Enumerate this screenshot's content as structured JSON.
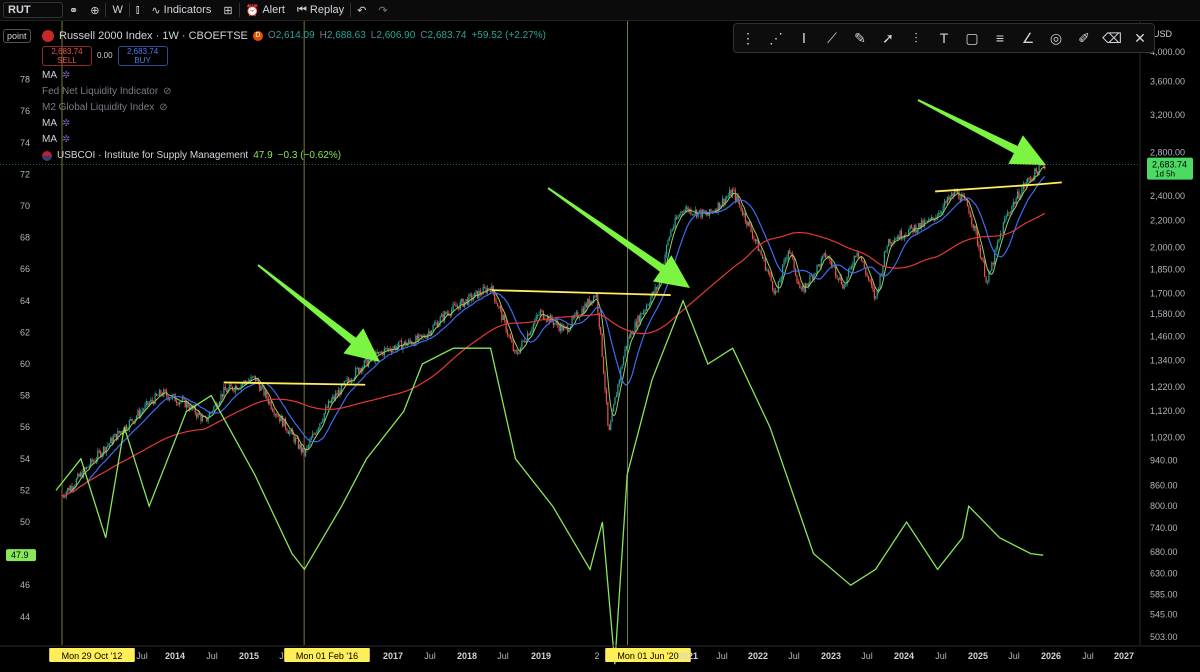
{
  "toolbar": {
    "symbol": "RUT",
    "interval": "W",
    "indicators_label": "Indicators",
    "alert_label": "Alert",
    "replay_label": "Replay"
  },
  "legend": {
    "title": "Russell 2000 Index · 1W · CBOEFTSE",
    "ohlc_o": "O",
    "ohlc_o_val": "2,614.09",
    "ohlc_h": "H",
    "ohlc_h_val": "2,688.63",
    "ohlc_l": "L",
    "ohlc_l_val": "2,606.90",
    "ohlc_c": "C",
    "ohlc_c_val": "2,683.74",
    "change": "+59.52 (+2.27%)",
    "sell_price": "2,683.74",
    "sell_label": "SELL",
    "spread": "0.00",
    "buy_price": "2,683.74",
    "buy_label": "BUY",
    "ma1": "MA",
    "fed_net": "Fed Net Liquidity Indicator",
    "m2": "M2 Global Liquidity Index",
    "ma2": "MA",
    "ma3": "MA",
    "usbcoi": "USBCOI · Institute for Supply Management",
    "usbcoi_val": "47.9",
    "usbcoi_chg": "−0.3 (−0.62%)"
  },
  "left_scale_label": "point",
  "right_scale_label": "USD",
  "colors": {
    "up": "#26a69a",
    "down": "#ef5350",
    "ism": "#88e65a",
    "ma_blue": "#3d6cf0",
    "ma_red": "#e53935",
    "ma_green": "#9ccc65",
    "resistance": "#ffee58",
    "arrow": "#7cf542",
    "price_tag": "#4cd964"
  },
  "chart_data": {
    "type": "line",
    "title": "Russell 2000 Index · 1W · CBOEFTSE",
    "x_labels": [
      "Mon 29 Oct '12",
      "Jul",
      "2014",
      "Jul",
      "2015",
      "Jul",
      "Mon 01 Feb '16",
      "2017",
      "Jul",
      "2018",
      "Jul",
      "2019",
      "2",
      "Mon 01 Jun '20",
      "2021",
      "Jul",
      "2022",
      "Jul",
      "2023",
      "Jul",
      "2024",
      "Jul",
      "2025",
      "Jul",
      "2026",
      "Jul",
      "2027"
    ],
    "left_axis": {
      "ticks": [
        "78",
        "76",
        "74",
        "72",
        "70",
        "68",
        "66",
        "64",
        "62",
        "60",
        "58",
        "56",
        "54",
        "52",
        "50",
        "47.9",
        "46",
        "44"
      ],
      "current_value": "47.9"
    },
    "right_axis": {
      "scale": "log",
      "ticks": [
        "4,000.00",
        "3,600.00",
        "3,200.00",
        "2,800.00",
        "2,400.00",
        "2,200.00",
        "2,000.00",
        "1,850.00",
        "1,700.00",
        "1,580.00",
        "1,460.00",
        "1,340.00",
        "1,220.00",
        "1,120.00",
        "1,020.00",
        "940.00",
        "860.00",
        "800.00",
        "740.00",
        "680.00",
        "630.00",
        "585.00",
        "545.00",
        "503.00"
      ],
      "current_price": "2,683.74",
      "countdown": "1d 5h"
    },
    "series": [
      {
        "name": "Russell 2000 Index",
        "unit": "USD",
        "points": [
          [
            "2012-10",
            812
          ],
          [
            "2013-01",
            870
          ],
          [
            "2013-07",
            1010
          ],
          [
            "2014-01",
            1150
          ],
          [
            "2014-03",
            1195
          ],
          [
            "2014-07",
            1150
          ],
          [
            "2014-10",
            1080
          ],
          [
            "2015-01",
            1200
          ],
          [
            "2015-06",
            1260
          ],
          [
            "2015-09",
            1130
          ],
          [
            "2016-02",
            960
          ],
          [
            "2016-06",
            1150
          ],
          [
            "2016-11",
            1310
          ],
          [
            "2017-03",
            1390
          ],
          [
            "2017-09",
            1450
          ],
          [
            "2018-01",
            1590
          ],
          [
            "2018-08",
            1740
          ],
          [
            "2018-12",
            1360
          ],
          [
            "2019-04",
            1590
          ],
          [
            "2019-08",
            1490
          ],
          [
            "2020-01",
            1700
          ],
          [
            "2020-03",
            1020
          ],
          [
            "2020-06",
            1440
          ],
          [
            "2020-11",
            1750
          ],
          [
            "2021-01",
            2120
          ],
          [
            "2021-03",
            2300
          ],
          [
            "2021-07",
            2240
          ],
          [
            "2021-11",
            2440
          ],
          [
            "2022-06",
            1690
          ],
          [
            "2022-08",
            2000
          ],
          [
            "2022-10",
            1700
          ],
          [
            "2023-02",
            1950
          ],
          [
            "2023-05",
            1740
          ],
          [
            "2023-07",
            1990
          ],
          [
            "2023-10",
            1660
          ],
          [
            "2023-12",
            2050
          ],
          [
            "2024-07",
            2200
          ],
          [
            "2024-11",
            2440
          ],
          [
            "2025-01",
            2300
          ],
          [
            "2025-04",
            1760
          ],
          [
            "2025-07",
            2230
          ],
          [
            "2025-10",
            2500
          ],
          [
            "2026-01",
            2683.74
          ]
        ]
      },
      {
        "name": "USBCOI",
        "unit": "point",
        "points": [
          [
            "2012-10",
            52
          ],
          [
            "2013-02",
            54
          ],
          [
            "2013-06",
            49
          ],
          [
            "2013-09",
            56
          ],
          [
            "2014-01",
            51
          ],
          [
            "2014-07",
            57
          ],
          [
            "2014-11",
            58
          ],
          [
            "2015-06",
            53
          ],
          [
            "2015-12",
            48
          ],
          [
            "2016-02",
            47
          ],
          [
            "2016-08",
            51
          ],
          [
            "2016-12",
            54
          ],
          [
            "2017-06",
            57
          ],
          [
            "2017-09",
            60
          ],
          [
            "2018-02",
            61
          ],
          [
            "2018-08",
            61
          ],
          [
            "2018-12",
            54
          ],
          [
            "2019-06",
            51
          ],
          [
            "2019-12",
            47
          ],
          [
            "2020-02",
            50
          ],
          [
            "2020-04",
            41
          ],
          [
            "2020-06",
            53
          ],
          [
            "2020-10",
            59
          ],
          [
            "2021-03",
            64
          ],
          [
            "2021-07",
            60
          ],
          [
            "2021-11",
            61
          ],
          [
            "2022-05",
            56
          ],
          [
            "2022-12",
            48
          ],
          [
            "2023-06",
            46
          ],
          [
            "2023-10",
            47
          ],
          [
            "2024-03",
            50
          ],
          [
            "2024-08",
            47
          ],
          [
            "2024-12",
            49
          ],
          [
            "2025-01",
            51
          ],
          [
            "2025-06",
            49
          ],
          [
            "2025-11",
            48
          ],
          [
            "2026-01",
            47.9
          ]
        ]
      },
      {
        "name": "MA",
        "color": "blue"
      },
      {
        "name": "MA",
        "color": "red"
      },
      {
        "name": "MA",
        "color": "green"
      }
    ],
    "grid": false,
    "legend_position": "top-left",
    "annotations": [
      "resistance lines and arrows before breakouts in 2016, 2020 and 2026"
    ]
  }
}
